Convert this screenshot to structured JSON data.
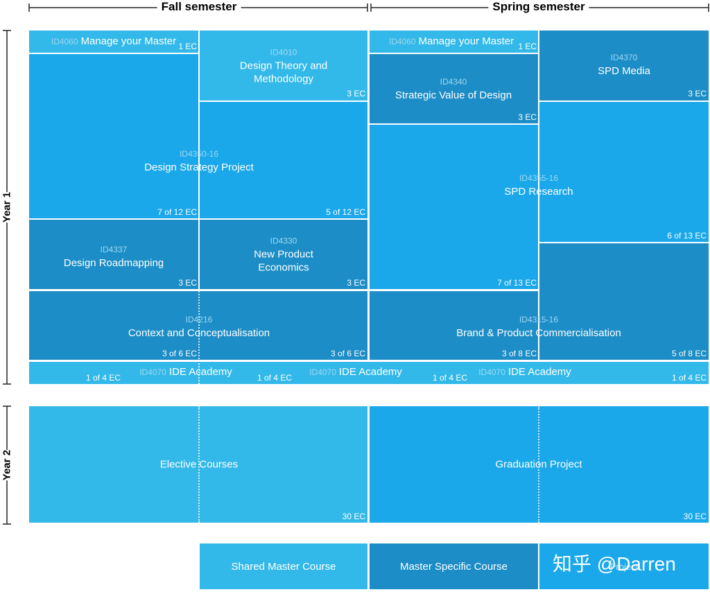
{
  "header": {
    "fall": "Fall semester",
    "spring": "Spring semester"
  },
  "years": [
    "Year 1",
    "Year 2"
  ],
  "courses": [
    {
      "id": "ID4060",
      "title": [
        "Manage your Master"
      ],
      "credits": [
        "1 EC"
      ]
    },
    {
      "id": "ID4010",
      "title": [
        "Design Theory and",
        "Methodology"
      ],
      "credits": [
        "3 EC"
      ]
    },
    {
      "id": "ID4350-16",
      "title": [
        "Design Strategy Project"
      ],
      "credits": [
        "7 of 12 EC",
        "5 of 12 EC"
      ]
    },
    {
      "id": "ID4337",
      "title": [
        "Design Roadmapping"
      ],
      "credits": [
        "3 EC"
      ]
    },
    {
      "id": "ID4330",
      "title": [
        "New Product",
        "Economics"
      ],
      "credits": [
        "3 EC"
      ]
    },
    {
      "id": "ID4216",
      "title": [
        "Context and Conceptualisation"
      ],
      "credits": [
        "3 of 6 EC",
        "3 of 6 EC"
      ]
    },
    {
      "id": "ID4070",
      "title": [
        "IDE Academy"
      ],
      "credits": [
        "1 of 4 EC",
        "1 of 4 EC",
        "1 of 4 EC",
        "1 of 4 EC"
      ]
    },
    {
      "id": "ID4060",
      "title": [
        "Manage your Master"
      ],
      "credits": [
        "1 EC"
      ]
    },
    {
      "id": "ID4340",
      "title": [
        "Strategic Value of Design"
      ],
      "credits": [
        "3 EC"
      ]
    },
    {
      "id": "ID4370",
      "title": [
        "SPD Media"
      ],
      "credits": [
        "3 EC"
      ]
    },
    {
      "id": "ID4355-16",
      "title": [
        "SPD Research"
      ],
      "credits": [
        "7 of 13 EC",
        "6 of 13 EC"
      ]
    },
    {
      "id": "ID4315-16",
      "title": [
        "Brand & Product Commercialisation"
      ],
      "credits": [
        "3 of 8 EC",
        "5 of 8 EC"
      ]
    },
    {
      "title": [
        "Elective Courses"
      ],
      "credits": [
        "30 EC"
      ]
    },
    {
      "title": [
        "Graduation Project"
      ],
      "credits": [
        "30 EC"
      ]
    }
  ],
  "legend": [
    "Shared Master Course",
    "Master Specific Course",
    "Project"
  ],
  "watermark": "知乎 @Darren"
}
